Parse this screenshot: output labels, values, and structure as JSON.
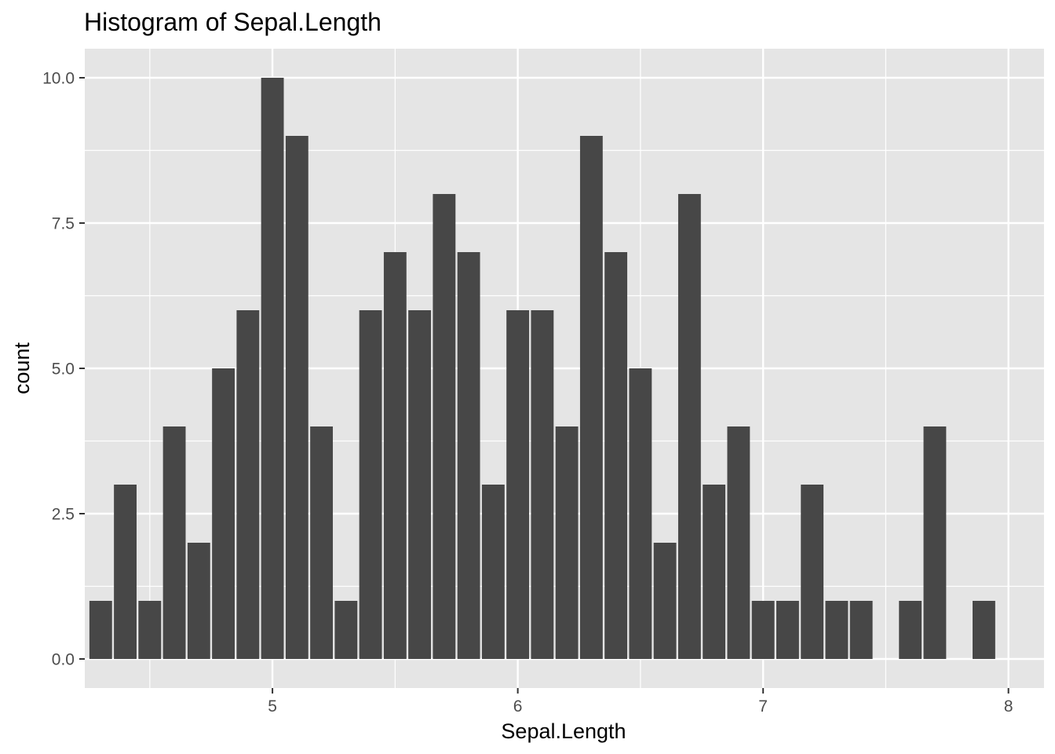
{
  "chart_data": {
    "type": "bar",
    "title": "Histogram of Sepal.Length",
    "xlabel": "Sepal.Length",
    "ylabel": "count",
    "bin_width": 0.1,
    "x": [
      4.3,
      4.4,
      4.5,
      4.6,
      4.7,
      4.8,
      4.9,
      5.0,
      5.1,
      5.2,
      5.3,
      5.4,
      5.5,
      5.6,
      5.7,
      5.8,
      5.9,
      6.0,
      6.1,
      6.2,
      6.3,
      6.4,
      6.5,
      6.6,
      6.7,
      6.8,
      6.9,
      7.0,
      7.1,
      7.2,
      7.3,
      7.4,
      7.5,
      7.6,
      7.7,
      7.8,
      7.9
    ],
    "values": [
      1,
      3,
      1,
      4,
      2,
      5,
      6,
      10,
      9,
      4,
      1,
      6,
      7,
      6,
      8,
      7,
      3,
      6,
      6,
      4,
      9,
      7,
      5,
      2,
      8,
      3,
      4,
      1,
      1,
      3,
      1,
      1,
      0,
      1,
      4,
      0,
      1
    ],
    "xlim": [
      4.235,
      8.145
    ],
    "ylim": [
      -0.5,
      10.5
    ],
    "x_ticks": [
      5,
      6,
      7,
      8
    ],
    "x_tick_labels": [
      "5",
      "6",
      "7",
      "8"
    ],
    "x_minor_ticks": [
      4.5,
      5.5,
      6.5,
      7.5
    ],
    "y_ticks": [
      0,
      2.5,
      5,
      7.5,
      10
    ],
    "y_tick_labels": [
      "0.0",
      "2.5",
      "5.0",
      "7.5",
      "10.0"
    ],
    "y_minor_ticks": [
      1.25,
      3.75,
      6.25,
      8.75
    ],
    "grid": true,
    "legend": "none",
    "colors": {
      "bar_fill": "#474747",
      "panel_background": "#e5e5e5",
      "grid": "#ffffff",
      "tick_text": "#4d4d4d",
      "tick_mark": "#333333"
    }
  }
}
